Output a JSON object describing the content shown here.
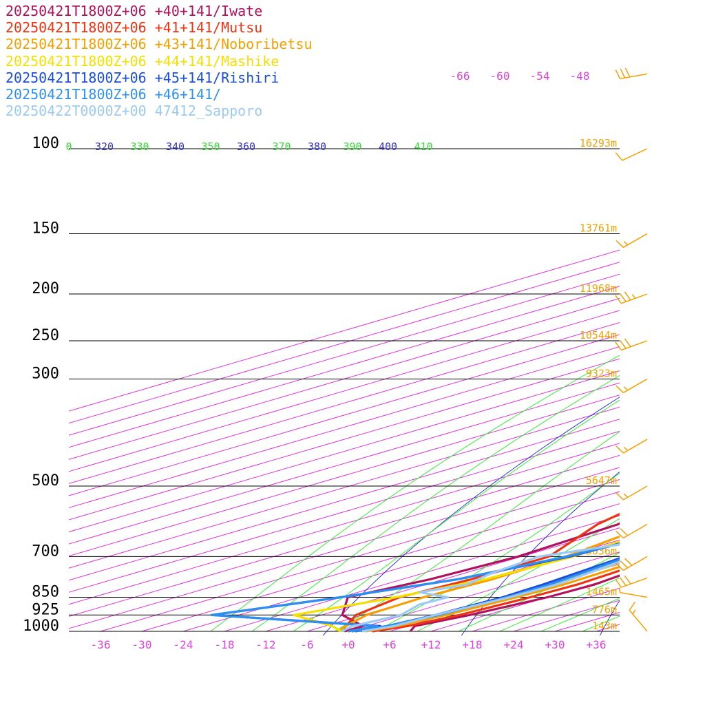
{
  "chart_data": {
    "type": "line",
    "chart_kind": "skew-T log-p sounding diagram",
    "grid": true,
    "legend_placement": "top-left",
    "legend": [
      {
        "label": "20250421T1800Z+06 +40+141/Iwate",
        "color": "#b0125e"
      },
      {
        "label": "20250421T1800Z+06 +41+141/Mutsu",
        "color": "#ee3311"
      },
      {
        "label": "20250421T1800Z+06 +43+141/Noboribetsu",
        "color": "#f5a000"
      },
      {
        "label": "20250421T1800Z+06 +44+141/Mashike",
        "color": "#f4e000"
      },
      {
        "label": "20250421T1800Z+06 +45+141/Rishiri",
        "color": "#1a4fdd"
      },
      {
        "label": "20250421T1800Z+06 +46+141/",
        "color": "#2f8fef"
      },
      {
        "label": "20250422T0000Z+00 47412_Sapporo",
        "color": "#9ccaf5"
      }
    ],
    "pressure_levels": [
      {
        "label": "100",
        "p": 100,
        "height": "16293m"
      },
      {
        "label": "150",
        "p": 150,
        "height": "13761m"
      },
      {
        "label": "200",
        "p": 200,
        "height": "11968m"
      },
      {
        "label": "250",
        "p": 250,
        "height": "10544m"
      },
      {
        "label": "300",
        "p": 300,
        "height": "9323m"
      },
      {
        "label": "500",
        "p": 500,
        "height": "5647m"
      },
      {
        "label": "700",
        "p": 700,
        "height": "3036m"
      },
      {
        "label": "850",
        "p": 850,
        "height": "1465m"
      },
      {
        "label": "925",
        "p": 925,
        "height": "776m"
      },
      {
        "label": "1000",
        "p": 1000,
        "height": "143m"
      }
    ],
    "x_tick_labels": [
      "-36",
      "-30",
      "-24",
      "-18",
      "-12",
      "-6",
      "+0",
      "+6",
      "+12",
      "+18",
      "+24",
      "+30",
      "+36"
    ],
    "x_ticks": [
      -36,
      -30,
      -24,
      -18,
      -12,
      -6,
      0,
      6,
      12,
      18,
      24,
      30,
      36
    ],
    "top_temperature_labels": [
      "-66",
      "-60",
      "-54",
      "-48"
    ],
    "theta_labels": [
      {
        "label": "0",
        "color": "#33dd33"
      },
      {
        "label": "320",
        "color": "#3333cc"
      },
      {
        "label": "330",
        "color": "#33dd33"
      },
      {
        "label": "340",
        "color": "#3333cc"
      },
      {
        "label": "350",
        "color": "#33dd33"
      },
      {
        "label": "360",
        "color": "#3333cc"
      },
      {
        "label": "370",
        "color": "#33dd33"
      },
      {
        "label": "380",
        "color": "#3333cc"
      },
      {
        "label": "390",
        "color": "#33dd33"
      },
      {
        "label": "400",
        "color": "#3333cc"
      },
      {
        "label": "410",
        "color": "#33dd33"
      }
    ],
    "xlim": [
      -39,
      40
    ],
    "pressure_range_hPa": [
      1000,
      100
    ],
    "colors": {
      "isotherm": "#dd33dd",
      "dry_adiabat": "#3333dd",
      "moist_adiabat": "#33ee33",
      "isobar": "#000000",
      "height_label": "#f5a000",
      "wind_barb": "#f5a000",
      "tick_label": "#dd44dd"
    },
    "series": [
      {
        "name": "20250421T1800Z+06 +40+141/Iwate",
        "temperature": [
          [
            1000,
            9
          ],
          [
            975,
            7
          ],
          [
            925,
            9.5
          ],
          [
            850,
            12
          ],
          [
            800,
            12.5
          ],
          [
            700,
            10
          ],
          [
            600,
            8
          ],
          [
            500,
            4.5
          ],
          [
            400,
            -4
          ],
          [
            300,
            -14
          ],
          [
            250,
            -22
          ],
          [
            200,
            -34.5
          ],
          [
            150,
            -46
          ],
          [
            120,
            -51
          ],
          [
            100,
            -57.5
          ],
          [
            85,
            -64
          ],
          [
            70,
            -71
          ]
        ],
        "dewpoint": [
          [
            1000,
            -0.5
          ],
          [
            975,
            -0.5
          ],
          [
            925,
            -9
          ],
          [
            850,
            -17
          ],
          [
            780,
            -14
          ],
          [
            700,
            -12.5
          ],
          [
            600,
            -14
          ],
          [
            500,
            -24
          ],
          [
            400,
            -24.5
          ],
          [
            300,
            -38
          ]
        ]
      },
      {
        "name": "20250421T1800Z+06 +41+141/Mutsu",
        "temperature": [
          [
            1000,
            3.5
          ],
          [
            975,
            6
          ],
          [
            925,
            8
          ],
          [
            850,
            9.5
          ],
          [
            800,
            10
          ],
          [
            700,
            8.5
          ],
          [
            600,
            6
          ],
          [
            500,
            3
          ],
          [
            400,
            -4
          ],
          [
            300,
            -15.5
          ],
          [
            250,
            -24
          ],
          [
            200,
            -37
          ],
          [
            150,
            -48
          ],
          [
            120,
            -53
          ],
          [
            100,
            -58
          ],
          [
            85,
            -66
          ],
          [
            70,
            -73
          ]
        ],
        "dewpoint": [
          [
            1000,
            -1
          ],
          [
            975,
            -3
          ],
          [
            925,
            -7
          ],
          [
            850,
            -9.5
          ],
          [
            780,
            -8
          ],
          [
            700,
            -8
          ],
          [
            600,
            -17
          ],
          [
            500,
            -24
          ],
          [
            400,
            -14
          ],
          [
            300,
            -25
          ]
        ]
      },
      {
        "name": "20250421T1800Z+06 +43+141/Noboribetsu",
        "temperature": [
          [
            1000,
            2.5
          ],
          [
            975,
            4.5
          ],
          [
            925,
            6
          ],
          [
            850,
            7.5
          ],
          [
            800,
            8
          ],
          [
            700,
            7
          ],
          [
            600,
            4.5
          ],
          [
            500,
            2
          ],
          [
            400,
            -5
          ],
          [
            300,
            -16
          ],
          [
            250,
            -24.5
          ],
          [
            200,
            -37.5
          ],
          [
            150,
            -48.5
          ],
          [
            120,
            -54
          ],
          [
            100,
            -59
          ],
          [
            85,
            -67
          ],
          [
            70,
            -74
          ]
        ],
        "dewpoint": [
          [
            1000,
            -1.5
          ],
          [
            975,
            -3
          ],
          [
            925,
            -5.5
          ],
          [
            850,
            -6
          ],
          [
            780,
            -5
          ],
          [
            700,
            -5.5
          ],
          [
            600,
            -9
          ],
          [
            500,
            -17
          ],
          [
            400,
            -8
          ],
          [
            300,
            -18
          ]
        ]
      },
      {
        "name": "20250421T1800Z+06 +44+141/Mashike",
        "temperature": [
          [
            1000,
            2
          ],
          [
            975,
            3.5
          ],
          [
            925,
            5
          ],
          [
            850,
            6
          ],
          [
            800,
            6.5
          ],
          [
            700,
            5
          ],
          [
            600,
            2.5
          ],
          [
            500,
            0
          ],
          [
            400,
            -6
          ],
          [
            300,
            -17
          ],
          [
            250,
            -25
          ],
          [
            200,
            -38
          ],
          [
            150,
            -49
          ],
          [
            120,
            -55
          ],
          [
            100,
            -60
          ],
          [
            85,
            -68
          ],
          [
            70,
            -75
          ]
        ],
        "dewpoint": [
          [
            1000,
            -1
          ],
          [
            975,
            -5
          ],
          [
            925,
            -16
          ],
          [
            850,
            -10
          ],
          [
            780,
            -6
          ],
          [
            700,
            -4.5
          ],
          [
            600,
            -6
          ],
          [
            500,
            -6.5
          ],
          [
            400,
            -1
          ],
          [
            300,
            -20
          ]
        ]
      },
      {
        "name": "20250421T1800Z+06 +45+141/Rishiri",
        "temperature": [
          [
            1000,
            1
          ],
          [
            975,
            3
          ],
          [
            925,
            4.5
          ],
          [
            850,
            5.5
          ],
          [
            800,
            5
          ],
          [
            700,
            3
          ],
          [
            600,
            0.5
          ],
          [
            500,
            -1
          ],
          [
            400,
            -7
          ],
          [
            300,
            -18
          ],
          [
            250,
            -26
          ],
          [
            200,
            -38.5
          ],
          [
            150,
            -49.5
          ],
          [
            120,
            -56
          ],
          [
            100,
            -61
          ],
          [
            85,
            -69
          ],
          [
            70,
            -76
          ]
        ],
        "dewpoint": [
          [
            1000,
            0.5
          ],
          [
            975,
            2
          ],
          [
            925,
            -28
          ],
          [
            850,
            -18
          ],
          [
            780,
            -10
          ],
          [
            700,
            -5
          ],
          [
            600,
            -3
          ],
          [
            500,
            -2.5
          ],
          [
            400,
            -4.5
          ],
          [
            300,
            -19
          ]
        ]
      },
      {
        "name": "20250421T1800Z+06 +46+141/",
        "temperature": [
          [
            1000,
            0.5
          ],
          [
            975,
            3
          ],
          [
            925,
            5
          ],
          [
            850,
            6
          ],
          [
            800,
            6
          ],
          [
            700,
            3.5
          ],
          [
            600,
            0
          ],
          [
            500,
            -2
          ],
          [
            400,
            -8
          ],
          [
            300,
            -18.5
          ],
          [
            250,
            -26.5
          ],
          [
            200,
            -39
          ],
          [
            150,
            -50
          ],
          [
            120,
            -56.5
          ],
          [
            100,
            -61.5
          ],
          [
            85,
            -69
          ],
          [
            70,
            -76
          ]
        ],
        "dewpoint": [
          [
            1000,
            0
          ],
          [
            975,
            1.5
          ],
          [
            925,
            -28
          ],
          [
            850,
            -18
          ],
          [
            780,
            -10
          ],
          [
            700,
            -5.5
          ],
          [
            600,
            -2
          ],
          [
            500,
            -2
          ],
          [
            400,
            -4.5
          ],
          [
            300,
            -19
          ]
        ]
      },
      {
        "name": "20250422T0000Z+00 47412_Sapporo",
        "temperature": [
          [
            1000,
            2
          ],
          [
            975,
            4
          ],
          [
            925,
            4.5
          ],
          [
            850,
            6.5
          ],
          [
            800,
            7
          ],
          [
            700,
            4.5
          ],
          [
            600,
            1.5
          ],
          [
            500,
            -1.5
          ],
          [
            400,
            -9
          ],
          [
            300,
            -17.5
          ],
          [
            250,
            -27
          ],
          [
            200,
            -39
          ],
          [
            150,
            -50
          ],
          [
            120,
            -55
          ],
          [
            100,
            -59
          ]
        ],
        "dewpoint": [
          [
            1000,
            -1
          ],
          [
            975,
            -2
          ],
          [
            925,
            -0.5
          ],
          [
            880,
            -3
          ],
          [
            850,
            -2.5
          ],
          [
            830,
            -9
          ],
          [
            800,
            -6
          ],
          [
            760,
            -8
          ],
          [
            700,
            -9.5
          ],
          [
            650,
            -2
          ],
          [
            600,
            -7.5
          ],
          [
            540,
            -10
          ],
          [
            500,
            -17
          ],
          [
            470,
            -13.5
          ],
          [
            440,
            -12
          ],
          [
            420,
            -14
          ],
          [
            400,
            -10
          ],
          [
            370,
            -18
          ],
          [
            340,
            -23
          ],
          [
            300,
            -33
          ],
          [
            260,
            -28
          ],
          [
            230,
            -35
          ],
          [
            200,
            -42
          ],
          [
            185,
            -40
          ],
          [
            175,
            -52
          ],
          [
            165,
            -60
          ],
          [
            150,
            -64
          ],
          [
            120,
            -64
          ],
          [
            100,
            -63
          ]
        ]
      }
    ],
    "wind_barbs": [
      {
        "p": 1000,
        "speed_kt": 15,
        "direction_deg": 320
      },
      {
        "p": 850,
        "speed_kt": 5,
        "direction_deg": 280
      },
      {
        "p": 775,
        "speed_kt": 30,
        "direction_deg": 250
      },
      {
        "p": 700,
        "speed_kt": 30,
        "direction_deg": 240
      },
      {
        "p": 600,
        "speed_kt": 20,
        "direction_deg": 240
      },
      {
        "p": 500,
        "speed_kt": 15,
        "direction_deg": 240
      },
      {
        "p": 400,
        "speed_kt": 15,
        "direction_deg": 240
      },
      {
        "p": 300,
        "speed_kt": 15,
        "direction_deg": 240
      },
      {
        "p": 250,
        "speed_kt": 30,
        "direction_deg": 250
      },
      {
        "p": 200,
        "speed_kt": 35,
        "direction_deg": 250
      },
      {
        "p": 150,
        "speed_kt": 15,
        "direction_deg": 240
      },
      {
        "p": 100,
        "speed_kt": 10,
        "direction_deg": 245
      },
      {
        "p": 70,
        "speed_kt": 30,
        "direction_deg": 260
      }
    ]
  }
}
